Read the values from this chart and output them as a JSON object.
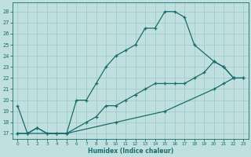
{
  "xlabel": "Humidex (Indice chaleur)",
  "bg_color": "#c0e0e0",
  "grid_color": "#a0cccc",
  "line_color": "#1a6b6b",
  "xlim": [
    -0.5,
    23.5
  ],
  "ylim": [
    16.5,
    28.8
  ],
  "xticks": [
    0,
    1,
    2,
    3,
    4,
    5,
    6,
    7,
    8,
    9,
    10,
    11,
    12,
    13,
    14,
    15,
    16,
    17,
    18,
    19,
    20,
    21,
    22,
    23
  ],
  "yticks": [
    17,
    18,
    19,
    20,
    21,
    22,
    23,
    24,
    25,
    26,
    27,
    28
  ],
  "line1_x": [
    0,
    1,
    2,
    3,
    4,
    5,
    6,
    7,
    8,
    9,
    10,
    11,
    12,
    13,
    14,
    15,
    16,
    17,
    18,
    20,
    21,
    22
  ],
  "line1_y": [
    19.5,
    17.0,
    17.5,
    17.0,
    17.0,
    17.0,
    20.0,
    20.0,
    21.5,
    23.0,
    24.0,
    24.5,
    25.0,
    26.5,
    26.5,
    28.0,
    28.0,
    27.5,
    25.0,
    23.5,
    23.0,
    22.0
  ],
  "line2_x": [
    0,
    1,
    2,
    3,
    4,
    5,
    10,
    15,
    20,
    21,
    22,
    23
  ],
  "line2_y": [
    17.0,
    17.0,
    17.5,
    17.0,
    17.0,
    17.0,
    18.0,
    19.0,
    21.0,
    21.5,
    22.0,
    22.0
  ],
  "line3_x": [
    0,
    5,
    7,
    8,
    9,
    10,
    11,
    12,
    13,
    14,
    15,
    16,
    17,
    18,
    19,
    20,
    21,
    22,
    23
  ],
  "line3_y": [
    17.0,
    17.0,
    18.0,
    18.5,
    19.5,
    19.5,
    20.0,
    20.5,
    21.0,
    21.5,
    21.5,
    21.5,
    21.5,
    22.0,
    22.5,
    23.5,
    23.0,
    22.0,
    22.0
  ]
}
